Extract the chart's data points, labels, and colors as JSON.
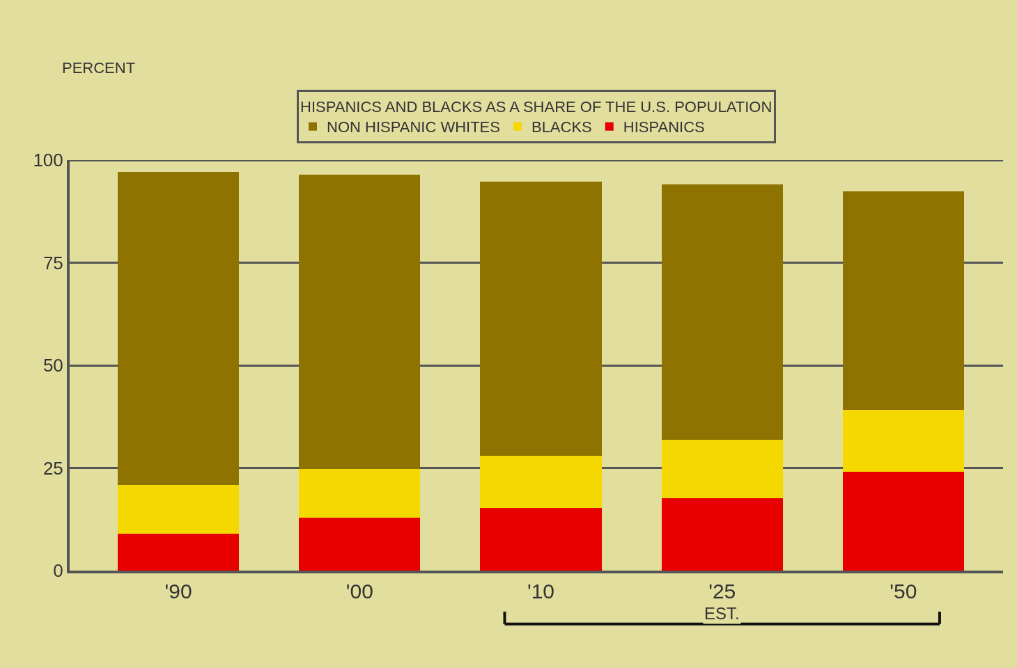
{
  "chart_data": {
    "type": "bar",
    "stacked": true,
    "ylabel": "PERCENT",
    "legend_title": "HISPANICS AND BLACKS AS A SHARE OF THE U.S. POPULATION",
    "categories": [
      "'90",
      "'00",
      "'10",
      "'25",
      "'50"
    ],
    "series": [
      {
        "name": "HISPANICS",
        "color": "#e80000",
        "values": [
          9.0,
          12.9,
          15.3,
          17.7,
          24.0
        ]
      },
      {
        "name": "BLACKS",
        "color": "#f5d800",
        "values": [
          11.8,
          11.9,
          12.6,
          14.2,
          15.1
        ]
      },
      {
        "name": "NON HISPANIC WHITES",
        "color": "#8f7300",
        "values": [
          76.3,
          71.6,
          66.9,
          62.1,
          53.2
        ]
      }
    ],
    "ylim": [
      0,
      100
    ],
    "yticks": [
      0,
      25,
      50,
      75,
      100
    ],
    "grid": "y",
    "legend": "top",
    "annotations": [
      "EST."
    ]
  }
}
